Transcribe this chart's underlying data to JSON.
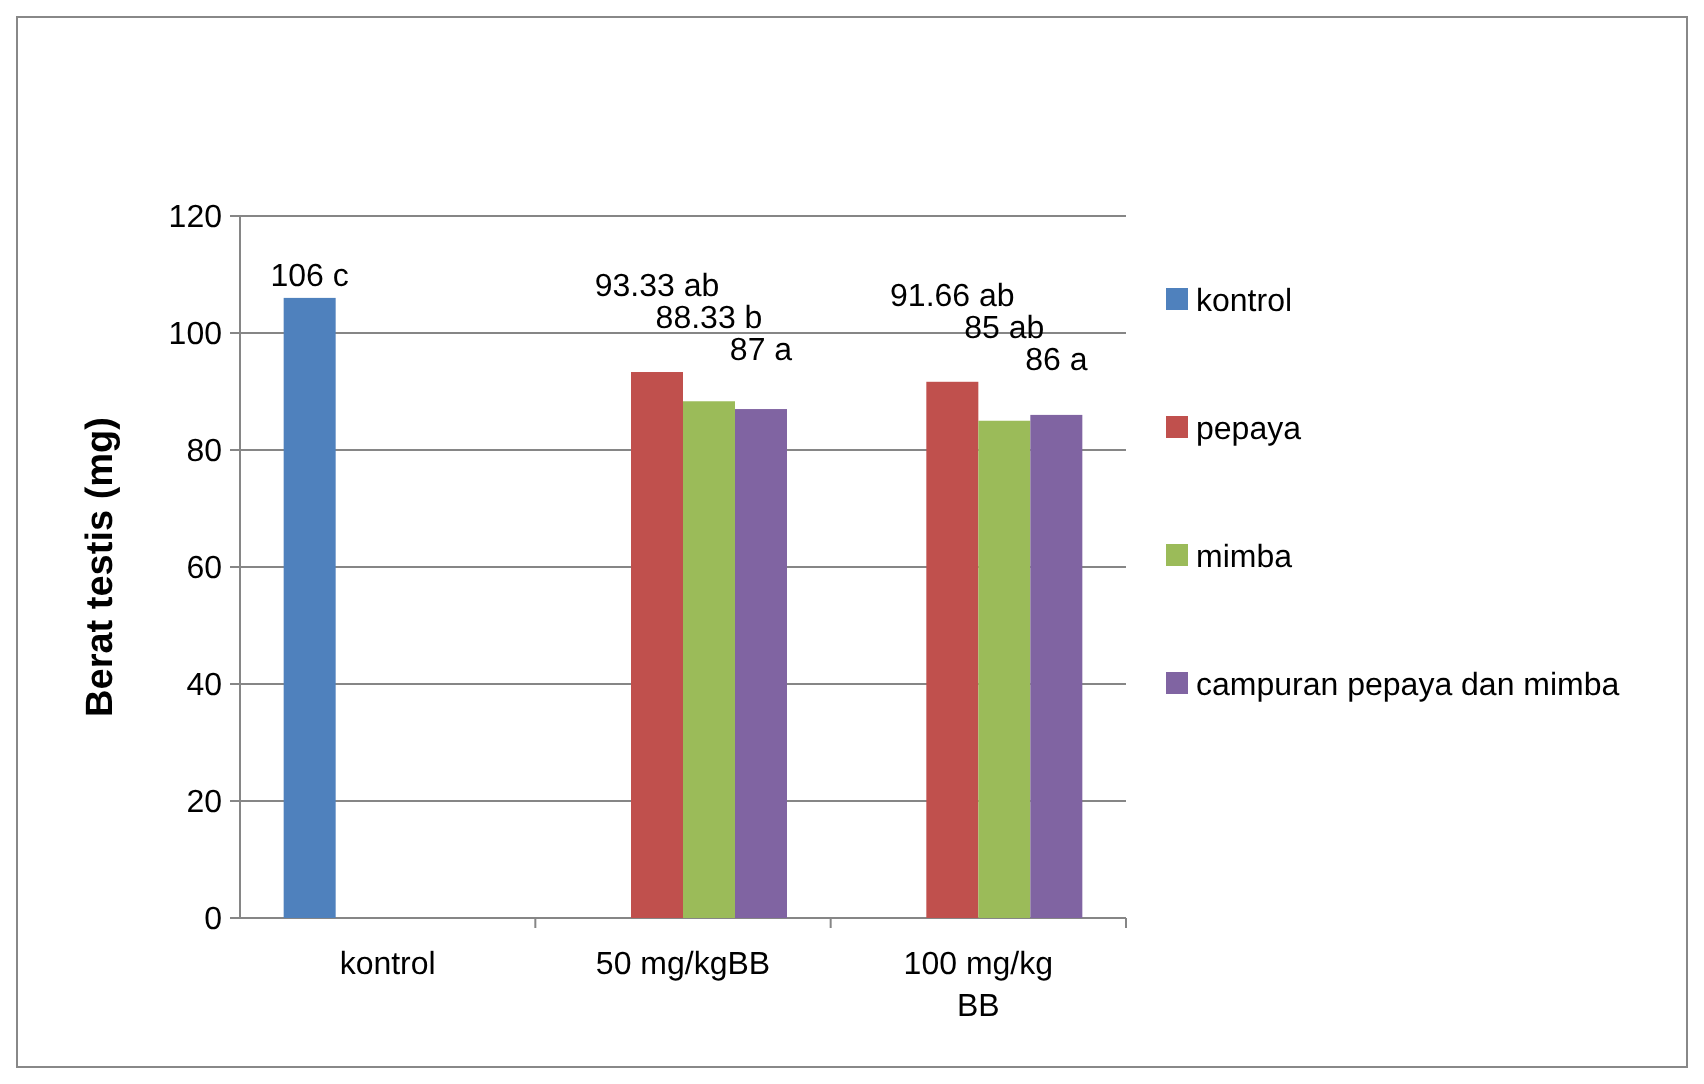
{
  "chart_data": {
    "type": "bar",
    "ylabel": "Berat testis (mg)",
    "categories": [
      "kontrol",
      "50 mg/kgBB",
      "100 mg/kg BB"
    ],
    "series": [
      {
        "name": "kontrol",
        "color": "#4f81bd",
        "values": [
          106,
          null,
          null
        ],
        "value_labels": [
          "106 c",
          null,
          null
        ]
      },
      {
        "name": "pepaya",
        "color": "#c0504d",
        "values": [
          null,
          93.33,
          91.66
        ],
        "value_labels": [
          null,
          "93.33 ab",
          "91.66 ab"
        ]
      },
      {
        "name": "mimba",
        "color": "#9bbb59",
        "values": [
          null,
          88.33,
          85
        ],
        "value_labels": [
          null,
          "88.33 b",
          "85 ab"
        ]
      },
      {
        "name": "campuran pepaya dan mimba",
        "color": "#8064a2",
        "values": [
          null,
          87,
          86
        ],
        "value_labels": [
          null,
          "87 a",
          "86 a"
        ]
      }
    ],
    "ylim": [
      0,
      120
    ],
    "yticks": [
      0,
      20,
      40,
      60,
      80,
      100,
      120
    ],
    "grid": "y",
    "legend": "right"
  }
}
